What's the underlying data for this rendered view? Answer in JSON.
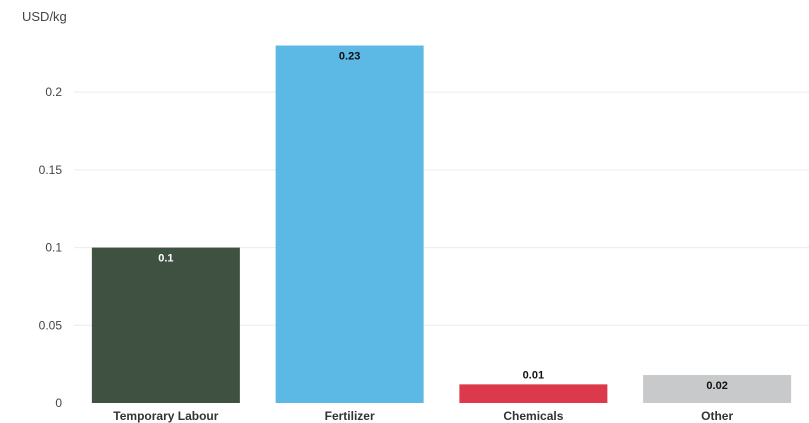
{
  "chart_data": {
    "type": "bar",
    "ylabel": "USD/kg",
    "categories": [
      "Temporary Labour",
      "Fertilizer",
      "Chemicals",
      "Other"
    ],
    "values": [
      0.1,
      0.23,
      0.012,
      0.018
    ],
    "data_labels": [
      "0.1",
      "0.23",
      "0.01",
      "0.02"
    ],
    "colors": [
      "#3f5242",
      "#5cb8e4",
      "#dc3a4c",
      "#c8c9ca"
    ],
    "label_colors": [
      "#ffffff",
      "#111111",
      "#111111",
      "#111111"
    ],
    "ylim": [
      0,
      0.24
    ],
    "yticks": [
      0,
      0.05,
      0.1,
      0.15,
      0.2
    ],
    "ytick_labels": [
      "0",
      "0.05",
      "0.1",
      "0.15",
      "0.2"
    ],
    "grid": true,
    "legend": "none"
  }
}
